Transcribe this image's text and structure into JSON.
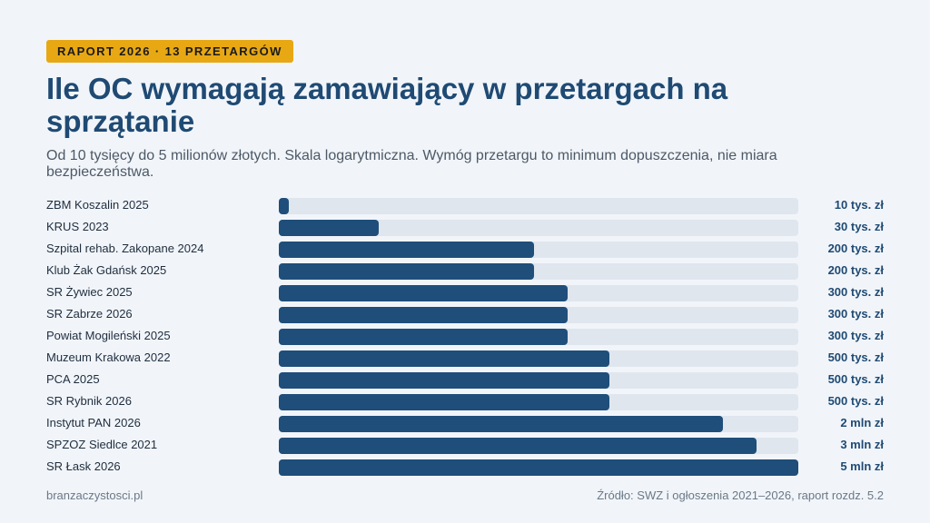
{
  "badge": "RAPORT 2026 · 13 PRZETARGÓW",
  "title": "Ile OC wymagają zamawiający w przetargach na sprzątanie",
  "subtitle": "Od 10 tysięcy do 5 milionów złotych. Skala logarytmiczna. Wymóg przetargu to minimum dopuszczenia, nie miara bezpieczeństwa.",
  "colors": {
    "accent": "#e8a813",
    "bar": "#1f4e7a",
    "track": "#dfe6ee",
    "title": "#1f4a73"
  },
  "chart_data": {
    "type": "bar",
    "orientation": "horizontal",
    "scale": "log",
    "unit": "zł",
    "xlim": [
      10000,
      5000000
    ],
    "categories": [
      "ZBM Koszalin 2025",
      "KRUS 2023",
      "Szpital rehab. Zakopane 2024",
      "Klub Żak Gdańsk 2025",
      "SR Żywiec 2025",
      "SR Zabrze 2026",
      "Powiat Mogileński 2025",
      "Muzeum Krakowa 2022",
      "PCA 2025",
      "SR Rybnik 2026",
      "Instytut PAN 2026",
      "SPZOZ Siedlce 2021",
      "SR Łask 2026"
    ],
    "values": [
      10000,
      30000,
      200000,
      200000,
      300000,
      300000,
      300000,
      500000,
      500000,
      500000,
      2000000,
      3000000,
      5000000
    ],
    "data_labels": [
      "10 tys. zł",
      "30 tys. zł",
      "200 tys. zł",
      "200 tys. zł",
      "300 tys. zł",
      "300 tys. zł",
      "300 tys. zł",
      "500 tys. zł",
      "500 tys. zł",
      "500 tys. zł",
      "2 mln zł",
      "3 mln zł",
      "5 mln zł"
    ]
  },
  "footer": {
    "site": "branzaczystosci.pl",
    "source": "Źródło: SWZ i ogłoszenia 2021–2026, raport rozdz. 5.2"
  }
}
